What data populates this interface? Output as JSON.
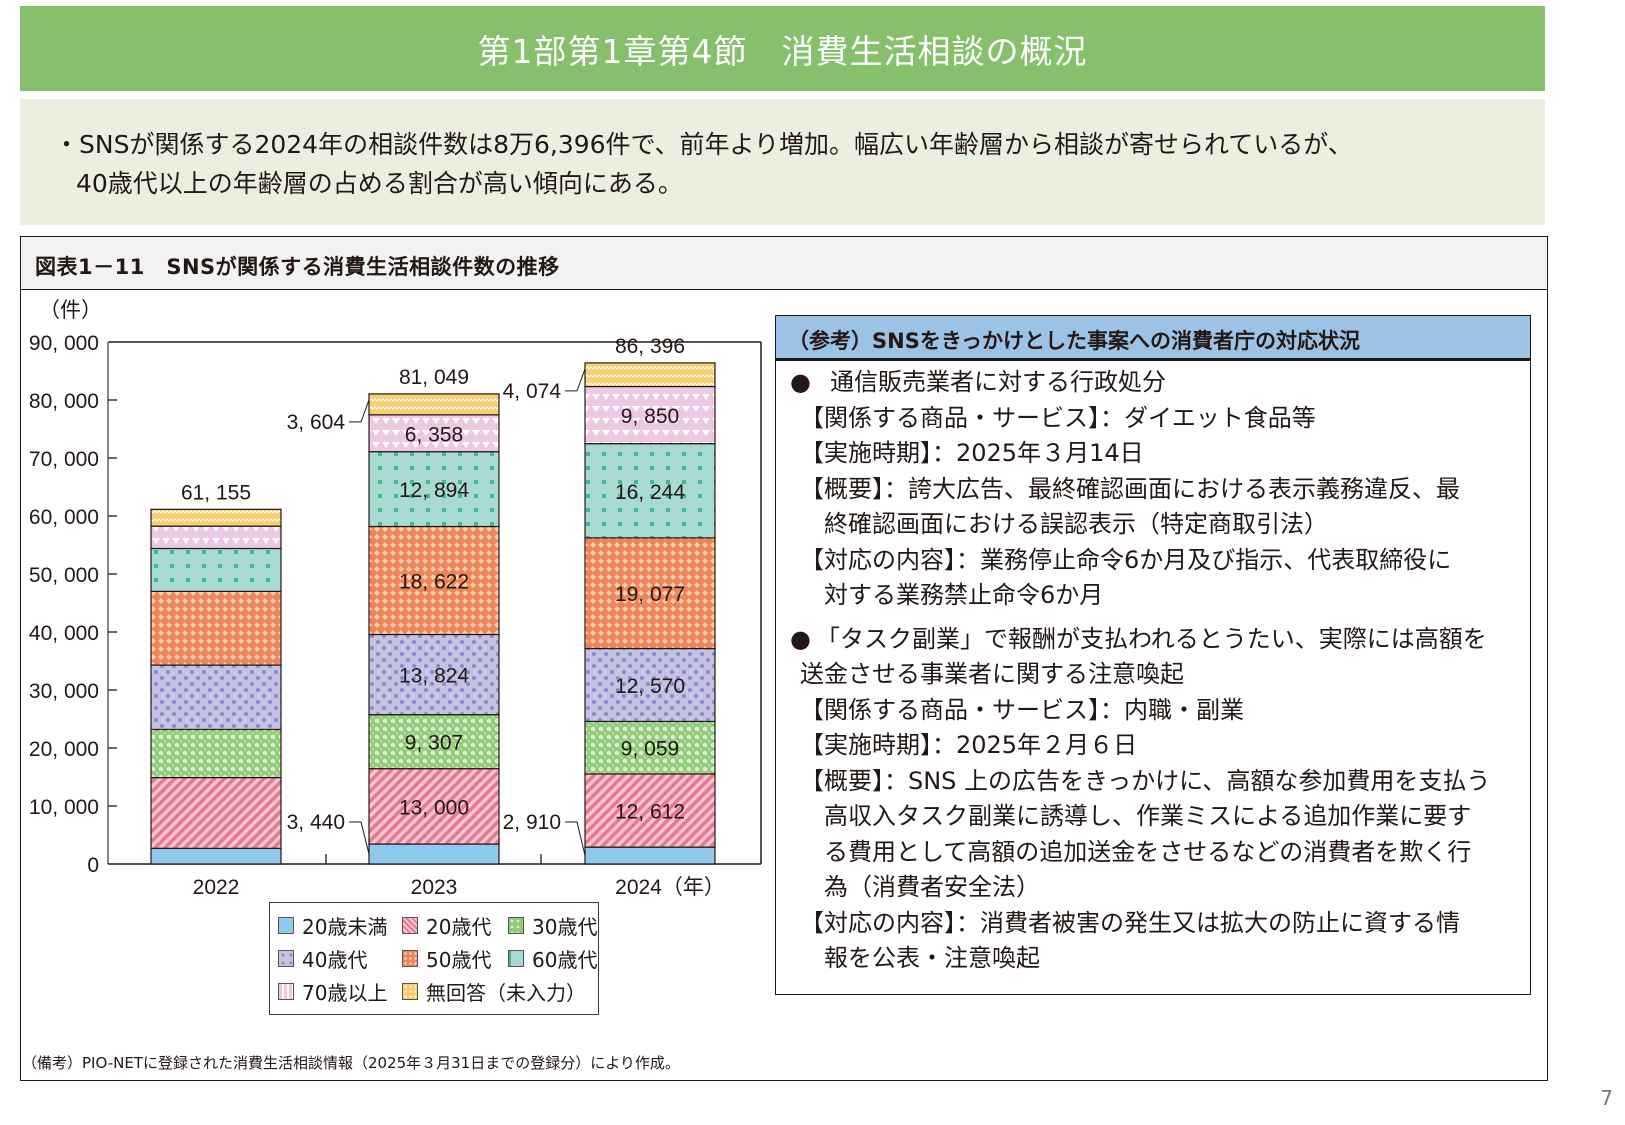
{
  "header": {
    "title": "第1部第1章第4節　消費生活相談の概況"
  },
  "summary": {
    "line1": "・SNSが関係する2024年の相談件数は8万6,396件で、前年より増加。幅広い年齢層から相談が寄せられているが、",
    "line2": "40歳代以上の年齢層の占める割合が高い傾向にある。"
  },
  "figure": {
    "title": "図表1－11　SNSが関係する消費生活相談件数の推移",
    "unit_label": "（件）",
    "year_suffix": "（年）"
  },
  "chart_data": {
    "type": "bar",
    "stacked": true,
    "title": "SNSが関係する消費生活相談件数の推移",
    "xlabel": "（年）",
    "ylabel": "（件）",
    "ylim": [
      0,
      90000
    ],
    "yticks": [
      0,
      10000,
      20000,
      30000,
      40000,
      50000,
      60000,
      70000,
      80000,
      90000
    ],
    "ytick_labels": [
      "0",
      "10, 000",
      "20, 000",
      "30, 000",
      "40, 000",
      "50, 000",
      "60, 000",
      "70, 000",
      "80, 000",
      "90, 000"
    ],
    "categories": [
      "2022",
      "2023",
      "2024"
    ],
    "category_labels": [
      "2022",
      "2023",
      "2024（年）"
    ],
    "totals": [
      61155,
      81049,
      86396
    ],
    "total_labels": [
      "61, 155",
      "81, 049",
      "86, 396"
    ],
    "series": [
      {
        "name": "20歳未満",
        "values": [
          2700,
          3440,
          2910
        ],
        "labels": [
          "",
          "3, 440",
          "2, 910"
        ],
        "color": "#8fc9ec",
        "pattern": "solid"
      },
      {
        "name": "20歳代",
        "values": [
          12200,
          13000,
          12612
        ],
        "labels": [
          "",
          "13, 000",
          "12, 612"
        ],
        "color": "#f0a0b4",
        "pattern": "diagonal-stripes"
      },
      {
        "name": "30歳代",
        "values": [
          8300,
          9307,
          9059
        ],
        "labels": [
          "",
          "9, 307",
          "9, 059"
        ],
        "color": "#93ce7c",
        "pattern": "diamond-grid"
      },
      {
        "name": "40歳代",
        "values": [
          11100,
          13824,
          12570
        ],
        "labels": [
          "",
          "13, 824",
          "12, 570"
        ],
        "color": "#c5c0e0",
        "pattern": "dots"
      },
      {
        "name": "50歳代",
        "values": [
          12700,
          18622,
          19077
        ],
        "labels": [
          "",
          "18, 622",
          "19, 077"
        ],
        "color": "#f08a5e",
        "pattern": "diamond-lattice"
      },
      {
        "name": "60歳代",
        "values": [
          7400,
          12894,
          16244
        ],
        "labels": [
          "",
          "12, 894",
          "16, 244"
        ],
        "color": "#a8dcd6",
        "pattern": "squares"
      },
      {
        "name": "70歳以上",
        "values": [
          3850,
          6358,
          9850
        ],
        "labels": [
          "",
          "6, 358",
          "9, 850"
        ],
        "color": "#ecc8e4",
        "pattern": "triangles"
      },
      {
        "name": "無回答（未入力）",
        "values": [
          2900,
          3604,
          4074
        ],
        "labels": [
          "",
          "3, 604",
          "4, 074"
        ],
        "color": "#fcd07a",
        "pattern": "zigzag"
      }
    ],
    "grid": false,
    "legend_position": "bottom"
  },
  "legend": {
    "items": [
      "20歳未満",
      "20歳代",
      "30歳代",
      "40歳代",
      "50歳代",
      "60歳代",
      "70歳以上",
      "無回答（未入力）"
    ]
  },
  "reference": {
    "title": "（参考）SNSをきっかけとした事案への消費者庁の対応状況",
    "bullet_icon": "●",
    "case1": {
      "heading": "通信販売業者に対する行政処分",
      "product": "【関係する商品・サービス】：ダイエット食品等",
      "date": "【実施時期】：2025年３月14日",
      "summary_1": "【概要】：誇大広告、最終確認画面における表示義務違反、最",
      "summary_2": "終確認画面における誤認表示（特定商取引法）",
      "action_1": "【対応の内容】：業務停止命令6か月及び指示、代表取締役に",
      "action_2": "対する業務禁止命令6か月"
    },
    "case2": {
      "heading_1": "「タスク副業」で報酬が支払われるとうたい、実際には高額を",
      "heading_2": "送金させる事業者に関する注意喚起",
      "product": "【関係する商品・サービス】：内職・副業",
      "date": "【実施時期】：2025年２月６日",
      "summary_1": "【概要】：SNS 上の広告をきっかけに、高額な参加費用を支払う",
      "summary_2": "高収入タスク副業に誘導し、作業ミスによる追加作業に要す",
      "summary_3": "る費用として高額の追加送金をさせるなどの消費者を欺く行",
      "summary_4": "為（消費者安全法）",
      "action_1": "【対応の内容】：消費者被害の発生又は拡大の防止に資する情",
      "action_2": "報を公表・注意喚起"
    }
  },
  "footnote": "（備考）PIO-NETに登録された消費生活相談情報（2025年３月31日までの登録分）により作成。",
  "page_number": "7"
}
